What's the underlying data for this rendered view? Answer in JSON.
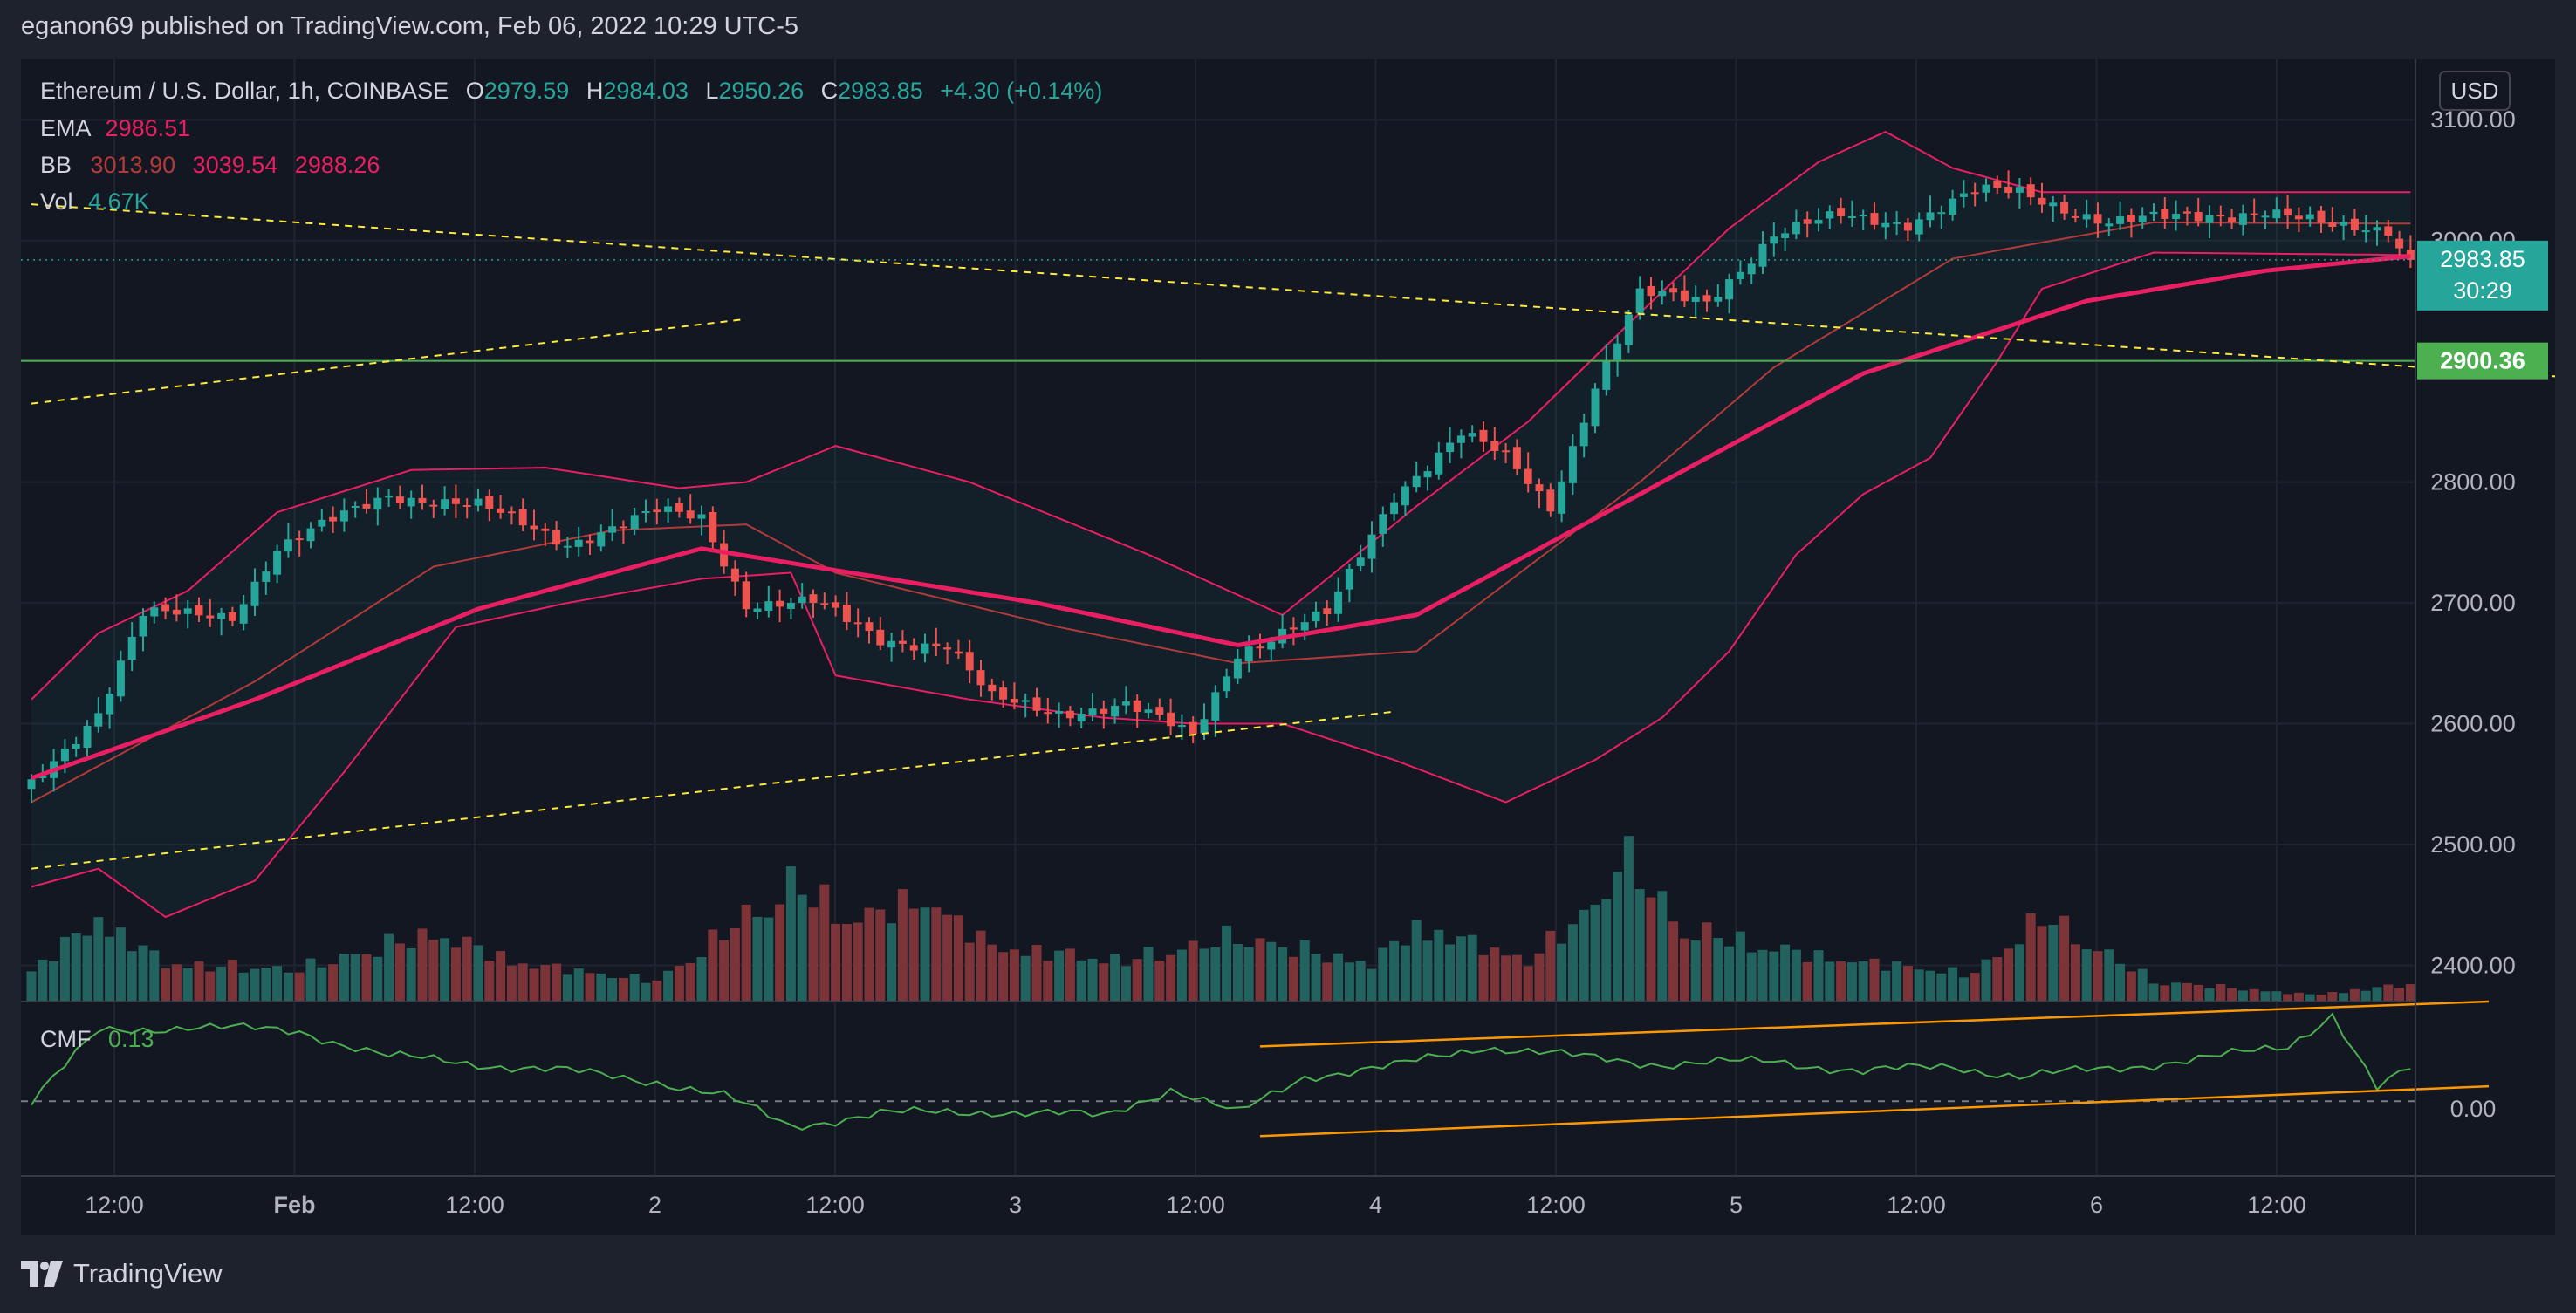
{
  "header": {
    "publisher_line": "eganon69 published on TradingView.com, Feb 06, 2022 10:29 UTC-5"
  },
  "brand": {
    "name": "TradingView"
  },
  "legend": {
    "symbol": "Ethereum / U.S. Dollar, 1h, COINBASE",
    "o_label": "O",
    "o_value": "2979.59",
    "h_label": "H",
    "h_value": "2984.03",
    "l_label": "L",
    "l_value": "2950.26",
    "c_label": "C",
    "c_value": "2983.85",
    "change": "+4.30 (+0.14%)",
    "ema_label": "EMA",
    "ema_value": "2986.51",
    "bb_label": "BB",
    "bb_basis": "3013.90",
    "bb_upper": "3039.54",
    "bb_lower": "2988.26",
    "vol_label": "Vol",
    "vol_value": "4.67K",
    "cmf_label": "CMF",
    "cmf_value": "0.13"
  },
  "price_axis": {
    "currency": "USD",
    "last_price": "2983.85",
    "countdown": "30:29",
    "level_value": "2900.36",
    "cmf_zero_label": "0.00"
  },
  "colors": {
    "up": "#26a69a",
    "down": "#ef5350",
    "up_volume": "#22635f",
    "down_volume": "#7d3438",
    "ema": "#e91e63",
    "bb_band": "#e91e63",
    "bb_basis": "#b33a3a",
    "cmf": "#4caf50",
    "trendline": "#ffeb3b",
    "channel": "#ff9800",
    "level": "#4caf50"
  },
  "chart_data": {
    "type": "candlestick",
    "title": "Ethereum / U.S. Dollar, 1h, COINBASE",
    "price_ylim": [
      2370,
      3150
    ],
    "price_ticks": [
      "3100.00",
      "3000.00",
      "2800.00",
      "2700.00",
      "2600.00",
      "2500.00",
      "2400.00"
    ],
    "time_ticks": [
      "12:00",
      "Feb",
      "12:00",
      "2",
      "12:00",
      "3",
      "12:00",
      "4",
      "12:00",
      "5",
      "12:00",
      "6",
      "12:00"
    ],
    "price_anchors": [
      {
        "t": 0,
        "p": 2550
      },
      {
        "t": 6,
        "p": 2610
      },
      {
        "t": 10,
        "p": 2690
      },
      {
        "t": 18,
        "p": 2690
      },
      {
        "t": 22,
        "p": 2745
      },
      {
        "t": 32,
        "p": 2790
      },
      {
        "t": 40,
        "p": 2780
      },
      {
        "t": 48,
        "p": 2750
      },
      {
        "t": 56,
        "p": 2775
      },
      {
        "t": 60,
        "p": 2770
      },
      {
        "t": 64,
        "p": 2700
      },
      {
        "t": 70,
        "p": 2700
      },
      {
        "t": 76,
        "p": 2670
      },
      {
        "t": 82,
        "p": 2665
      },
      {
        "t": 86,
        "p": 2620
      },
      {
        "t": 92,
        "p": 2610
      },
      {
        "t": 98,
        "p": 2615
      },
      {
        "t": 104,
        "p": 2590
      },
      {
        "t": 108,
        "p": 2660
      },
      {
        "t": 116,
        "p": 2690
      },
      {
        "t": 122,
        "p": 2790
      },
      {
        "t": 128,
        "p": 2840
      },
      {
        "t": 132,
        "p": 2820
      },
      {
        "t": 136,
        "p": 2780
      },
      {
        "t": 140,
        "p": 2880
      },
      {
        "t": 144,
        "p": 2955
      },
      {
        "t": 150,
        "p": 2950
      },
      {
        "t": 156,
        "p": 3005
      },
      {
        "t": 162,
        "p": 3020
      },
      {
        "t": 168,
        "p": 3015
      },
      {
        "t": 174,
        "p": 3040
      },
      {
        "t": 178,
        "p": 3040
      },
      {
        "t": 186,
        "p": 3015
      },
      {
        "t": 194,
        "p": 3020
      },
      {
        "t": 200,
        "p": 3025
      },
      {
        "t": 206,
        "p": 3010
      },
      {
        "t": 211,
        "p": 3010
      },
      {
        "t": 213,
        "p": 2984
      }
    ],
    "ema_anchors": [
      {
        "t": 0,
        "p": 2555
      },
      {
        "t": 20,
        "p": 2620
      },
      {
        "t": 40,
        "p": 2695
      },
      {
        "t": 60,
        "p": 2745
      },
      {
        "t": 70,
        "p": 2730
      },
      {
        "t": 90,
        "p": 2700
      },
      {
        "t": 108,
        "p": 2665
      },
      {
        "t": 124,
        "p": 2690
      },
      {
        "t": 144,
        "p": 2790
      },
      {
        "t": 164,
        "p": 2890
      },
      {
        "t": 184,
        "p": 2950
      },
      {
        "t": 200,
        "p": 2975
      },
      {
        "t": 213,
        "p": 2987
      }
    ],
    "bb_upper_anchors": [
      {
        "t": 0,
        "p": 2620
      },
      {
        "t": 6,
        "p": 2675
      },
      {
        "t": 14,
        "p": 2710
      },
      {
        "t": 22,
        "p": 2775
      },
      {
        "t": 34,
        "p": 2810
      },
      {
        "t": 46,
        "p": 2812
      },
      {
        "t": 58,
        "p": 2795
      },
      {
        "t": 64,
        "p": 2800
      },
      {
        "t": 72,
        "p": 2830
      },
      {
        "t": 84,
        "p": 2800
      },
      {
        "t": 100,
        "p": 2740
      },
      {
        "t": 112,
        "p": 2690
      },
      {
        "t": 124,
        "p": 2780
      },
      {
        "t": 134,
        "p": 2850
      },
      {
        "t": 144,
        "p": 2940
      },
      {
        "t": 152,
        "p": 3010
      },
      {
        "t": 160,
        "p": 3065
      },
      {
        "t": 166,
        "p": 3090
      },
      {
        "t": 172,
        "p": 3060
      },
      {
        "t": 180,
        "p": 3040
      },
      {
        "t": 196,
        "p": 3040
      },
      {
        "t": 208,
        "p": 3040
      },
      {
        "t": 213,
        "p": 3040
      }
    ],
    "bb_basis_anchors": [
      {
        "t": 0,
        "p": 2535
      },
      {
        "t": 20,
        "p": 2635
      },
      {
        "t": 36,
        "p": 2730
      },
      {
        "t": 52,
        "p": 2760
      },
      {
        "t": 64,
        "p": 2765
      },
      {
        "t": 72,
        "p": 2725
      },
      {
        "t": 92,
        "p": 2680
      },
      {
        "t": 108,
        "p": 2650
      },
      {
        "t": 124,
        "p": 2660
      },
      {
        "t": 144,
        "p": 2800
      },
      {
        "t": 156,
        "p": 2895
      },
      {
        "t": 172,
        "p": 2985
      },
      {
        "t": 190,
        "p": 3015
      },
      {
        "t": 213,
        "p": 3014
      }
    ],
    "bb_lower_anchors": [
      {
        "t": 0,
        "p": 2465
      },
      {
        "t": 6,
        "p": 2480
      },
      {
        "t": 12,
        "p": 2440
      },
      {
        "t": 20,
        "p": 2470
      },
      {
        "t": 28,
        "p": 2560
      },
      {
        "t": 38,
        "p": 2680
      },
      {
        "t": 48,
        "p": 2700
      },
      {
        "t": 60,
        "p": 2720
      },
      {
        "t": 68,
        "p": 2725
      },
      {
        "t": 72,
        "p": 2640
      },
      {
        "t": 84,
        "p": 2620
      },
      {
        "t": 96,
        "p": 2605
      },
      {
        "t": 104,
        "p": 2600
      },
      {
        "t": 112,
        "p": 2600
      },
      {
        "t": 122,
        "p": 2570
      },
      {
        "t": 132,
        "p": 2535
      },
      {
        "t": 140,
        "p": 2570
      },
      {
        "t": 146,
        "p": 2605
      },
      {
        "t": 152,
        "p": 2660
      },
      {
        "t": 158,
        "p": 2740
      },
      {
        "t": 164,
        "p": 2790
      },
      {
        "t": 170,
        "p": 2820
      },
      {
        "t": 176,
        "p": 2900
      },
      {
        "t": 180,
        "p": 2960
      },
      {
        "t": 190,
        "p": 2990
      },
      {
        "t": 213,
        "p": 2988
      }
    ],
    "volume_ylim": [
      0,
      600
    ],
    "volume_anchors": [
      {
        "t": 0,
        "v": 90
      },
      {
        "t": 6,
        "v": 240
      },
      {
        "t": 12,
        "v": 110
      },
      {
        "t": 24,
        "v": 95
      },
      {
        "t": 36,
        "v": 200
      },
      {
        "t": 44,
        "v": 110
      },
      {
        "t": 56,
        "v": 60
      },
      {
        "t": 68,
        "v": 340
      },
      {
        "t": 74,
        "v": 240
      },
      {
        "t": 80,
        "v": 300
      },
      {
        "t": 86,
        "v": 160
      },
      {
        "t": 98,
        "v": 120
      },
      {
        "t": 108,
        "v": 190
      },
      {
        "t": 120,
        "v": 110
      },
      {
        "t": 124,
        "v": 220
      },
      {
        "t": 134,
        "v": 120
      },
      {
        "t": 140,
        "v": 280
      },
      {
        "t": 142,
        "v": 440
      },
      {
        "t": 148,
        "v": 210
      },
      {
        "t": 160,
        "v": 130
      },
      {
        "t": 174,
        "v": 80
      },
      {
        "t": 176,
        "v": 140
      },
      {
        "t": 180,
        "v": 250
      },
      {
        "t": 190,
        "v": 60
      },
      {
        "t": 204,
        "v": 20
      },
      {
        "t": 213,
        "v": 50
      }
    ],
    "cmf_ylim": [
      -0.3,
      0.4
    ],
    "cmf_anchors": [
      {
        "t": 0,
        "v": 0.0
      },
      {
        "t": 6,
        "v": 0.28
      },
      {
        "t": 14,
        "v": 0.3
      },
      {
        "t": 24,
        "v": 0.28
      },
      {
        "t": 32,
        "v": 0.18
      },
      {
        "t": 40,
        "v": 0.15
      },
      {
        "t": 48,
        "v": 0.12
      },
      {
        "t": 56,
        "v": 0.08
      },
      {
        "t": 62,
        "v": 0.02
      },
      {
        "t": 68,
        "v": -0.1
      },
      {
        "t": 76,
        "v": -0.05
      },
      {
        "t": 86,
        "v": -0.04
      },
      {
        "t": 96,
        "v": -0.06
      },
      {
        "t": 102,
        "v": 0.05
      },
      {
        "t": 108,
        "v": -0.05
      },
      {
        "t": 114,
        "v": 0.1
      },
      {
        "t": 122,
        "v": 0.14
      },
      {
        "t": 130,
        "v": 0.22
      },
      {
        "t": 138,
        "v": 0.18
      },
      {
        "t": 146,
        "v": 0.15
      },
      {
        "t": 156,
        "v": 0.16
      },
      {
        "t": 164,
        "v": 0.12
      },
      {
        "t": 172,
        "v": 0.14
      },
      {
        "t": 178,
        "v": 0.1
      },
      {
        "t": 186,
        "v": 0.13
      },
      {
        "t": 196,
        "v": 0.18
      },
      {
        "t": 202,
        "v": 0.22
      },
      {
        "t": 206,
        "v": 0.35
      },
      {
        "t": 210,
        "v": 0.05
      },
      {
        "t": 213,
        "v": 0.13
      }
    ],
    "horizontal_level": 2900.36,
    "trendlines": [
      {
        "t1": 0,
        "p1": 3030,
        "t2": 230,
        "p2": 2885
      },
      {
        "t1": 0,
        "p1": 2865,
        "t2": 64,
        "p2": 2935
      },
      {
        "t1": 0,
        "p1": 2480,
        "t2": 122,
        "p2": 2610
      }
    ],
    "cmf_channel": [
      {
        "t1": 110,
        "v1": 0.22,
        "t2": 220,
        "v2": 0.4
      },
      {
        "t1": 110,
        "v1": -0.14,
        "t2": 220,
        "v2": 0.06
      }
    ]
  }
}
